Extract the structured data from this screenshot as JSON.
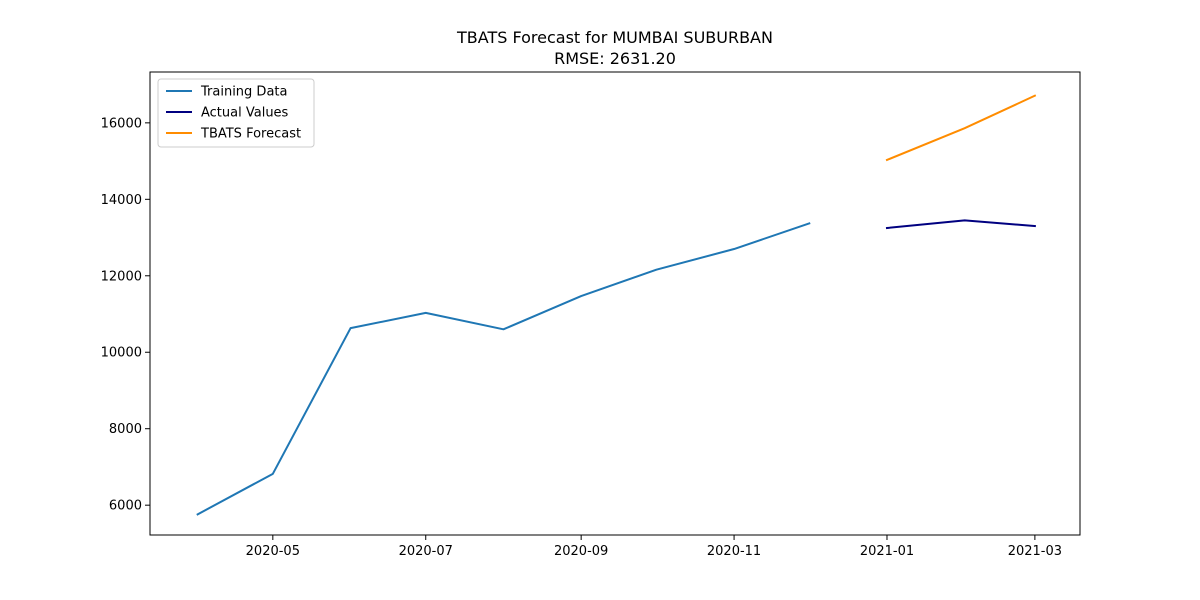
{
  "chart_data": {
    "type": "line",
    "title": "TBATS Forecast for MUMBAI SUBURBAN",
    "subtitle": "RMSE: 2631.20",
    "xlabel": "",
    "ylabel": "",
    "x_axis": {
      "type": "date",
      "range": [
        "2020-03-13",
        "2021-03-19"
      ],
      "ticks": [
        {
          "date": "2020-05-01",
          "label": "2020-05"
        },
        {
          "date": "2020-07-01",
          "label": "2020-07"
        },
        {
          "date": "2020-09-01",
          "label": "2020-09"
        },
        {
          "date": "2020-11-01",
          "label": "2020-11"
        },
        {
          "date": "2021-01-01",
          "label": "2021-01"
        },
        {
          "date": "2021-03-01",
          "label": "2021-03"
        }
      ]
    },
    "y_axis": {
      "range": [
        5220,
        17330
      ],
      "ticks": [
        {
          "value": 6000,
          "label": "6000"
        },
        {
          "value": 8000,
          "label": "8000"
        },
        {
          "value": 10000,
          "label": "10000"
        },
        {
          "value": 12000,
          "label": "12000"
        },
        {
          "value": 14000,
          "label": "14000"
        },
        {
          "value": 16000,
          "label": "16000"
        }
      ]
    },
    "grid": false,
    "legend_position": "top-left",
    "series": [
      {
        "name": "Training Data",
        "color": "#1f77b4",
        "points": [
          {
            "x": "2020-04-01",
            "y": 5760
          },
          {
            "x": "2020-05-01",
            "y": 6820
          },
          {
            "x": "2020-06-01",
            "y": 10630
          },
          {
            "x": "2020-07-01",
            "y": 11030
          },
          {
            "x": "2020-08-01",
            "y": 10600
          },
          {
            "x": "2020-09-01",
            "y": 11470
          },
          {
            "x": "2020-10-01",
            "y": 12160
          },
          {
            "x": "2020-11-01",
            "y": 12700
          },
          {
            "x": "2020-12-01",
            "y": 13370
          }
        ]
      },
      {
        "name": "Actual Values",
        "color": "#000080",
        "points": [
          {
            "x": "2021-01-01",
            "y": 13250
          },
          {
            "x": "2021-02-01",
            "y": 13450
          },
          {
            "x": "2021-03-01",
            "y": 13300
          }
        ]
      },
      {
        "name": "TBATS Forecast",
        "color": "#ff8c00",
        "points": [
          {
            "x": "2021-01-01",
            "y": 15030
          },
          {
            "x": "2021-02-01",
            "y": 15860
          },
          {
            "x": "2021-03-01",
            "y": 16710
          }
        ]
      }
    ]
  }
}
